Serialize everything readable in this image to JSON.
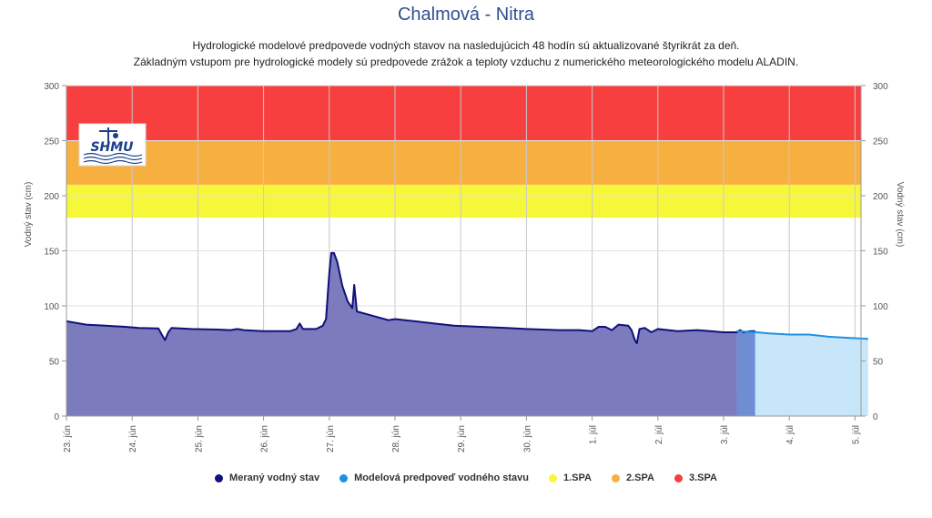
{
  "title": "Chalmová - Nitra",
  "subtitle_line1": "Hydrologické modelové predpovede vodných stavov na nasledujúcich 48 hodín sú aktualizované štyrikrát za deň.",
  "subtitle_line2": "Základným vstupom pre hydrologické modely sú predpovede zrážok a teploty vzduchu z numerického meteorologického modelu ALADIN.",
  "logo_text": "SHMU",
  "chart_data": {
    "type": "area",
    "ylabel_left": "Vodný stav (cm)",
    "ylabel_right": "Vodný stav (cm)",
    "ylim": [
      0,
      300
    ],
    "yticks": [
      0,
      50,
      100,
      150,
      200,
      250,
      300
    ],
    "x_range_days": [
      0,
      12.2
    ],
    "xticks": [
      {
        "day": 0,
        "label": "23. jún"
      },
      {
        "day": 1,
        "label": "24. jún"
      },
      {
        "day": 2,
        "label": "25. jún"
      },
      {
        "day": 3,
        "label": "26. jún"
      },
      {
        "day": 4,
        "label": "27. jún"
      },
      {
        "day": 5,
        "label": "28. jún"
      },
      {
        "day": 6,
        "label": "29. jún"
      },
      {
        "day": 7,
        "label": "30. jún"
      },
      {
        "day": 8,
        "label": "1. júl"
      },
      {
        "day": 9,
        "label": "2. júl"
      },
      {
        "day": 10,
        "label": "3. júl"
      },
      {
        "day": 11,
        "label": "4. júl"
      },
      {
        "day": 12,
        "label": "5. júl"
      }
    ],
    "bands": [
      {
        "name": "1.SPA",
        "from": 180,
        "to": 210,
        "color": "#f7f73a"
      },
      {
        "name": "2.SPA",
        "from": 210,
        "to": 250,
        "color": "#f7b040"
      },
      {
        "name": "3.SPA",
        "from": 250,
        "to": 300,
        "color": "#f73f3f"
      }
    ],
    "series": [
      {
        "name": "Meraný vodný stav",
        "color": "#10107a",
        "fill": "#7b7bbd",
        "points": [
          [
            0,
            86
          ],
          [
            0.3,
            83
          ],
          [
            0.6,
            82
          ],
          [
            0.9,
            81
          ],
          [
            1.1,
            80
          ],
          [
            1.4,
            79.5
          ],
          [
            1.45,
            74
          ],
          [
            1.5,
            69
          ],
          [
            1.55,
            76
          ],
          [
            1.6,
            80
          ],
          [
            1.9,
            79
          ],
          [
            2.3,
            78.5
          ],
          [
            2.5,
            78
          ],
          [
            2.6,
            79
          ],
          [
            2.7,
            78
          ],
          [
            3.0,
            77
          ],
          [
            3.4,
            77
          ],
          [
            3.5,
            79
          ],
          [
            3.55,
            84
          ],
          [
            3.6,
            79
          ],
          [
            3.8,
            79
          ],
          [
            3.9,
            82
          ],
          [
            3.95,
            88
          ],
          [
            4.0,
            130
          ],
          [
            4.03,
            148
          ],
          [
            4.07,
            148
          ],
          [
            4.12,
            140
          ],
          [
            4.2,
            118
          ],
          [
            4.28,
            104
          ],
          [
            4.35,
            98
          ],
          [
            4.38,
            119
          ],
          [
            4.42,
            95
          ],
          [
            4.6,
            92
          ],
          [
            4.9,
            87
          ],
          [
            5.0,
            88
          ],
          [
            5.3,
            86
          ],
          [
            5.6,
            84
          ],
          [
            5.9,
            82
          ],
          [
            6.3,
            81
          ],
          [
            6.7,
            80
          ],
          [
            7.0,
            79
          ],
          [
            7.5,
            78
          ],
          [
            7.8,
            78
          ],
          [
            8.0,
            77
          ],
          [
            8.1,
            81
          ],
          [
            8.2,
            81
          ],
          [
            8.3,
            78
          ],
          [
            8.4,
            83
          ],
          [
            8.55,
            82
          ],
          [
            8.6,
            78
          ],
          [
            8.65,
            69
          ],
          [
            8.68,
            66
          ],
          [
            8.72,
            79
          ],
          [
            8.8,
            80
          ],
          [
            8.9,
            76
          ],
          [
            9.0,
            79
          ],
          [
            9.3,
            77
          ],
          [
            9.6,
            78
          ],
          [
            9.8,
            77
          ],
          [
            10.0,
            76
          ],
          [
            10.2,
            76
          ],
          [
            10.25,
            78
          ],
          [
            10.3,
            76
          ],
          [
            10.4,
            77
          ],
          [
            10.48,
            77
          ]
        ]
      },
      {
        "name": "Modelová predpoveď vodného stavu",
        "color": "#1e90e6",
        "fill": "#c5e5fa",
        "points": [
          [
            10.2,
            77
          ],
          [
            10.5,
            76
          ],
          [
            10.7,
            75
          ],
          [
            11.0,
            74
          ],
          [
            11.3,
            74
          ],
          [
            11.6,
            72
          ],
          [
            11.9,
            71
          ],
          [
            12.2,
            70
          ]
        ]
      }
    ],
    "legend": [
      {
        "label": "Meraný vodný stav",
        "color": "#10107a"
      },
      {
        "label": "Modelová predpoveď vodného stavu",
        "color": "#1e90e6"
      },
      {
        "label": "1.SPA",
        "color": "#f7f73a"
      },
      {
        "label": "2.SPA",
        "color": "#f7b040"
      },
      {
        "label": "3.SPA",
        "color": "#f73f3f"
      }
    ]
  }
}
